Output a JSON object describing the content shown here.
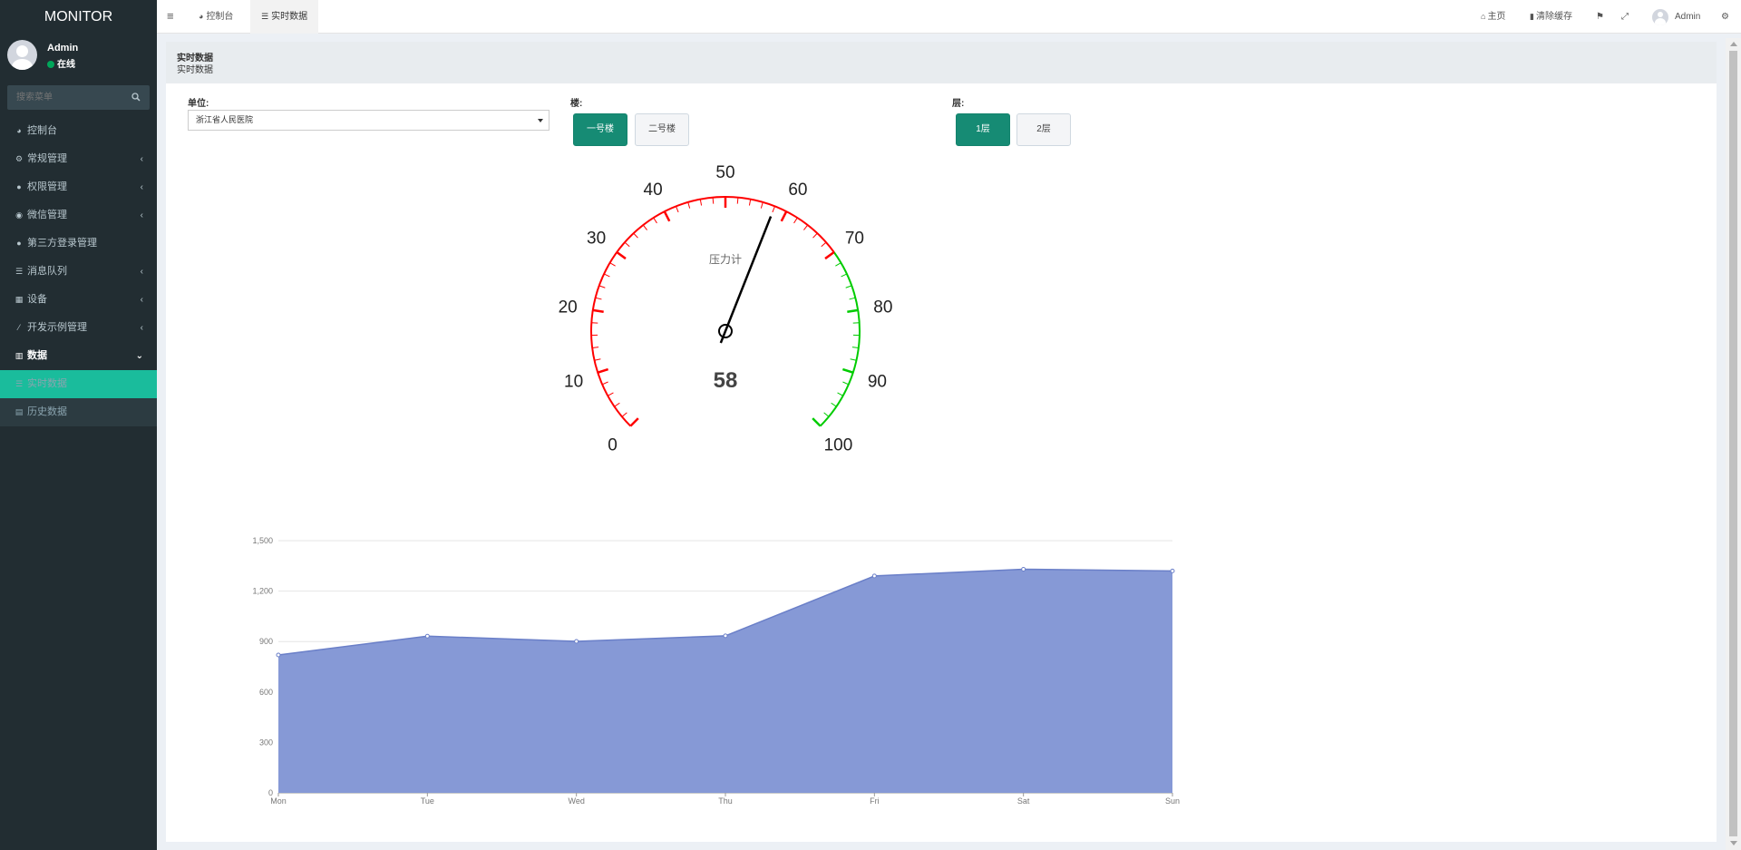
{
  "app": {
    "logo": "MONITOR"
  },
  "user": {
    "name": "Admin",
    "status": "在线"
  },
  "sidebar": {
    "search_placeholder": "搜索菜单",
    "items": [
      {
        "label": "控制台",
        "icon": "dashboard-icon",
        "chevron": ""
      },
      {
        "label": "常规管理",
        "icon": "cogs-icon",
        "chevron": "‹"
      },
      {
        "label": "权限管理",
        "icon": "users-icon",
        "chevron": "‹"
      },
      {
        "label": "微信管理",
        "icon": "wechat-icon",
        "chevron": "‹"
      },
      {
        "label": "第三方登录管理",
        "icon": "users-icon",
        "chevron": ""
      },
      {
        "label": "消息队列",
        "icon": "list-icon",
        "chevron": "‹"
      },
      {
        "label": "设备",
        "icon": "device-icon",
        "chevron": "‹"
      },
      {
        "label": "开发示例管理",
        "icon": "magic-icon",
        "chevron": "‹"
      },
      {
        "label": "数据",
        "icon": "bar-chart-icon",
        "chevron": "⌄"
      }
    ],
    "subitems": [
      {
        "label": "实时数据",
        "icon": "list-icon"
      },
      {
        "label": "历史数据",
        "icon": "database-icon"
      }
    ]
  },
  "header": {
    "tabs": [
      {
        "label": "控制台",
        "icon": "dashboard-icon"
      },
      {
        "label": "实时数据",
        "icon": "list-icon"
      }
    ],
    "home_label": "主页",
    "clear_cache_label": "清除缓存",
    "user_label": "Admin"
  },
  "content": {
    "title": "实时数据",
    "subtitle": "实时数据"
  },
  "filters": {
    "unit_label": "单位:",
    "unit_value": "浙江省人民医院",
    "building_label": "楼:",
    "buildings": [
      "一号楼",
      "二号楼"
    ],
    "floor_label": "层:",
    "floors": [
      "1层",
      "2层"
    ]
  },
  "gauge": {
    "title": "压力计",
    "value": 58,
    "min": 0,
    "max": 100,
    "major_labels": [
      "0",
      "10",
      "20",
      "30",
      "40",
      "50",
      "60",
      "70",
      "80",
      "90",
      "100"
    ],
    "colors": {
      "low": "#ff0000",
      "high": "#00cc00",
      "needle": "#000000"
    },
    "green_from": 70
  },
  "chart_data": {
    "type": "area",
    "categories": [
      "Mon",
      "Tue",
      "Wed",
      "Thu",
      "Fri",
      "Sat",
      "Sun"
    ],
    "values": [
      820,
      932,
      901,
      934,
      1290,
      1330,
      1320
    ],
    "yticks": [
      "0",
      "300",
      "600",
      "900",
      "1,200",
      "1,500"
    ],
    "ylim": [
      0,
      1500
    ],
    "color": "#8699d6",
    "line_color": "#6a7fc8",
    "grid": true
  },
  "colors": {
    "sidebar_bg": "#222d32",
    "accent": "#1abc9c",
    "primary_button": "#168b74"
  }
}
